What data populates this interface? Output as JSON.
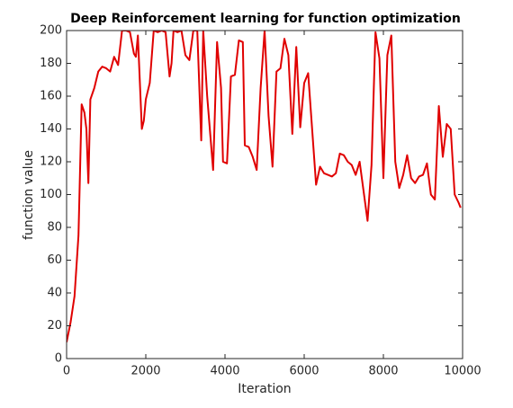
{
  "chart_data": {
    "type": "line",
    "title": "Deep Reinforcement learning for function optimization",
    "xlabel": "Iteration",
    "ylabel": "function value",
    "xlim": [
      0,
      10000
    ],
    "ylim": [
      0,
      200
    ],
    "xticks": [
      0,
      2000,
      4000,
      6000,
      8000,
      10000
    ],
    "yticks": [
      0,
      20,
      40,
      60,
      80,
      100,
      120,
      140,
      160,
      180,
      200
    ],
    "series": [
      {
        "color": "#e00000",
        "x": [
          0,
          100,
          200,
          300,
          380,
          450,
          500,
          550,
          600,
          700,
          800,
          900,
          1000,
          1100,
          1200,
          1300,
          1400,
          1500,
          1600,
          1700,
          1750,
          1800,
          1900,
          1950,
          2000,
          2100,
          2200,
          2300,
          2400,
          2500,
          2600,
          2650,
          2700,
          2800,
          2900,
          3000,
          3100,
          3200,
          3300,
          3400,
          3450,
          3550,
          3700,
          3800,
          3900,
          3950,
          4050,
          4150,
          4250,
          4350,
          4450,
          4500,
          4600,
          4700,
          4800,
          4900,
          5000,
          5100,
          5200,
          5300,
          5400,
          5500,
          5600,
          5700,
          5800,
          5900,
          6000,
          6100,
          6200,
          6300,
          6400,
          6500,
          6600,
          6700,
          6800,
          6900,
          7000,
          7100,
          7200,
          7300,
          7400,
          7600,
          7700,
          7800,
          7900,
          8000,
          8100,
          8200,
          8300,
          8400,
          8500,
          8600,
          8700,
          8800,
          8900,
          9000,
          9100,
          9200,
          9300,
          9400,
          9500,
          9600,
          9700,
          9800,
          9900,
          9950
        ],
        "values": [
          10,
          22,
          38,
          75,
          155,
          150,
          140,
          107,
          158,
          165,
          175,
          178,
          177,
          175,
          184,
          179,
          200,
          200,
          199,
          186,
          184,
          197,
          140,
          145,
          158,
          168,
          200,
          199,
          200,
          199,
          172,
          180,
          200,
          199,
          200,
          185,
          182,
          200,
          200,
          133,
          200,
          160,
          115,
          193,
          165,
          120,
          119,
          172,
          173,
          194,
          193,
          130,
          129,
          123,
          115,
          165,
          200,
          148,
          117,
          175,
          177,
          195,
          185,
          137,
          190,
          141,
          168,
          174,
          140,
          106,
          117,
          113,
          112,
          111,
          113,
          125,
          124,
          120,
          118,
          112,
          120,
          84,
          118,
          199,
          183,
          110,
          185,
          197,
          120,
          104,
          112,
          124,
          110,
          107,
          111,
          112,
          119,
          100,
          97,
          154,
          123,
          143,
          140,
          100,
          95,
          92
        ]
      }
    ]
  }
}
